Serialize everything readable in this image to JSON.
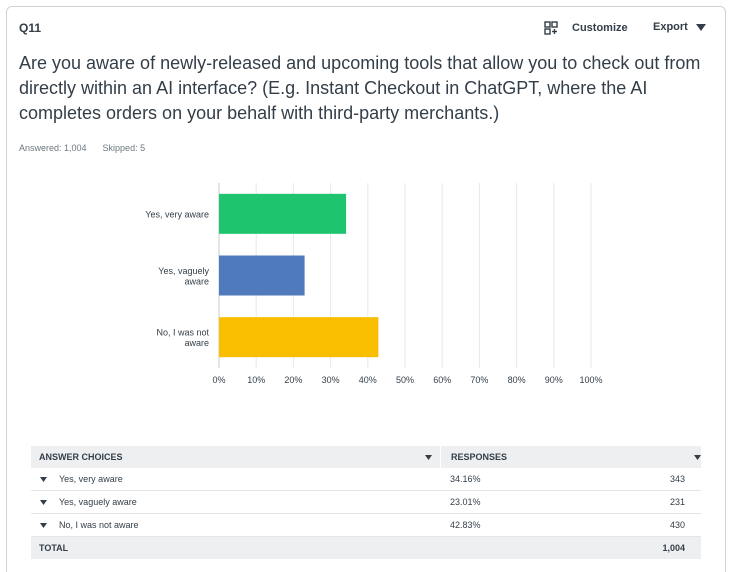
{
  "question": {
    "number": "Q11",
    "text": "Are you aware of newly-released and upcoming tools that allow you to check out from directly within an AI interface? (E.g. Instant Checkout in ChatGPT, where the AI completes orders on your behalf with third-party merchants.)",
    "answered": "Answered: 1,004",
    "skipped": "Skipped: 5"
  },
  "toolbar": {
    "customize_label": "Customize",
    "export_label": "Export"
  },
  "chart_data": {
    "type": "bar",
    "orientation": "horizontal",
    "categories": [
      "Yes, very aware",
      "Yes, vaguely aware",
      "No, I was not aware"
    ],
    "category_label_lines": [
      [
        "Yes, very aware"
      ],
      [
        "Yes, vaguely",
        "aware"
      ],
      [
        "No, I was not",
        "aware"
      ]
    ],
    "values": [
      34.16,
      23.01,
      42.83
    ],
    "colors": [
      "#1fc46f",
      "#4f7abb",
      "#f9be00"
    ],
    "xlim": [
      0,
      100
    ],
    "xticks": [
      0,
      10,
      20,
      30,
      40,
      50,
      60,
      70,
      80,
      90,
      100
    ],
    "tick_suffix": "%",
    "grid": true
  },
  "table": {
    "headers": [
      "ANSWER CHOICES",
      "RESPONSES"
    ],
    "rows": [
      {
        "choice": "Yes, very aware",
        "percent": "34.16%",
        "count": "343"
      },
      {
        "choice": "Yes, vaguely aware",
        "percent": "23.01%",
        "count": "231"
      },
      {
        "choice": "No, I was not aware",
        "percent": "42.83%",
        "count": "430"
      }
    ],
    "total_label": "TOTAL",
    "total_value": "1,004"
  }
}
